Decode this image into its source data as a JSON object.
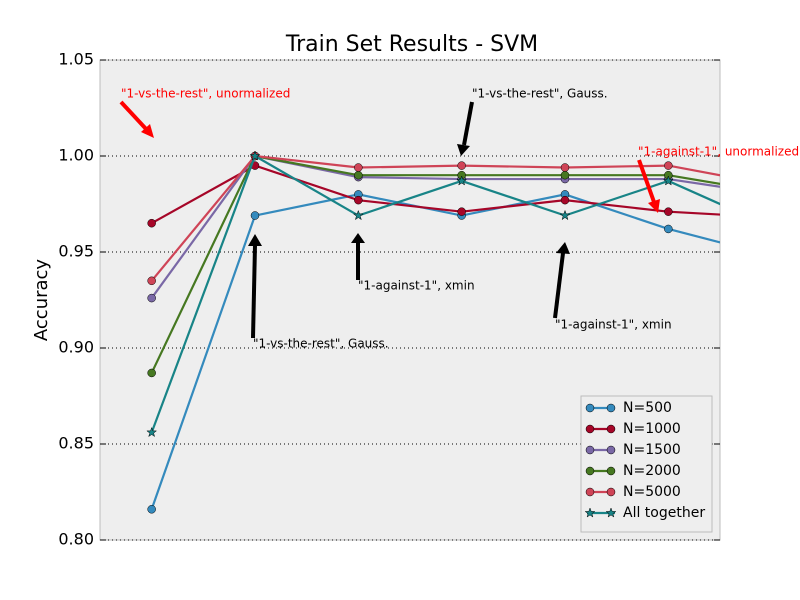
{
  "chart_data": {
    "type": "line",
    "title": "Train Set Results - SVM",
    "y_label": "Accuracy",
    "x": [
      0,
      1,
      2,
      3,
      4,
      5,
      6
    ],
    "xlim": [
      -0.5,
      5.5
    ],
    "ylim": [
      0.8,
      1.05
    ],
    "yticks": [
      {
        "value": 0.8,
        "label": "0.80"
      },
      0.85,
      {
        "value": 0.9,
        "label": "0.90"
      },
      0.95,
      {
        "value": 1.0,
        "label": "1.00"
      },
      1.05
    ],
    "grid": true,
    "legend": "lower right",
    "series": [
      {
        "name": "N=500",
        "color": "#348ABD",
        "marker": "circle",
        "values": [
          0.816,
          0.969,
          0.98,
          0.969,
          0.98,
          0.962,
          0.948
        ]
      },
      {
        "name": "N=1000",
        "color": "#A60628",
        "marker": "circle",
        "values": [
          0.965,
          0.995,
          0.977,
          0.971,
          0.977,
          0.971,
          0.968
        ]
      },
      {
        "name": "N=1500",
        "color": "#7A68A6",
        "marker": "circle",
        "values": [
          0.926,
          1.0,
          0.989,
          0.988,
          0.988,
          0.988,
          0.98
        ]
      },
      {
        "name": "N=2000",
        "color": "#467821",
        "marker": "circle",
        "values": [
          0.887,
          1.0,
          0.99,
          0.99,
          0.99,
          0.99,
          0.981
        ]
      },
      {
        "name": "N=5000",
        "color": "#CF4457",
        "marker": "circle",
        "values": [
          0.935,
          1.0,
          0.994,
          0.995,
          0.994,
          0.995,
          0.985
        ]
      },
      {
        "name": "All together",
        "color": "#188487",
        "marker": "star",
        "values": [
          0.856,
          1.0,
          0.969,
          0.987,
          0.969,
          0.987,
          0.963
        ]
      }
    ],
    "annotations": [
      {
        "text": "\"1-vs-the-rest\", unormalized",
        "color": "red"
      },
      {
        "text": "\"1-vs-the-rest\", Gauss.",
        "color": "black"
      },
      {
        "text": "\"1-against-1\", unormalized",
        "color": "red"
      },
      {
        "text": "\"1-against-1\",  xmin",
        "color": "black"
      },
      {
        "text": "\"1-against-1\", xmin",
        "color": "black"
      },
      {
        "text": "\"1-vs-the-rest\", Gauss.",
        "color": "black"
      }
    ]
  }
}
